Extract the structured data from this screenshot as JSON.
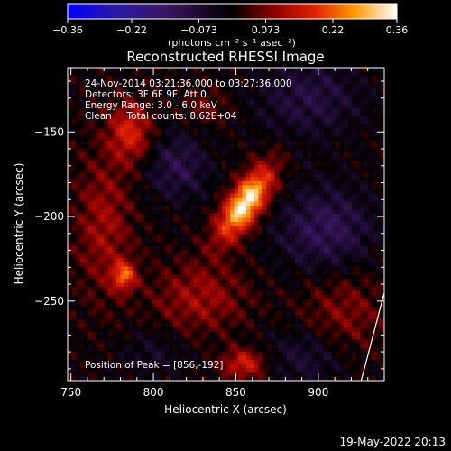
{
  "chart_data": {
    "type": "heatmap",
    "title": "Reconstructed RHESSI Image",
    "xlabel": "Heliocentric X (arcsec)",
    "ylabel": "Heliocentric Y (arcsec)",
    "xlim": [
      748,
      940
    ],
    "ylim": [
      -297,
      -112
    ],
    "x_ticks": [
      750,
      800,
      850,
      900
    ],
    "y_ticks": [
      -150,
      -200,
      -250
    ],
    "x_tick_labels": [
      "750",
      "800",
      "850",
      "900"
    ],
    "y_tick_labels": [
      "−150",
      "−200",
      "−250"
    ],
    "colorbar": {
      "range": [
        -0.36,
        0.36
      ],
      "ticks": [
        -0.36,
        -0.22,
        -0.073,
        0.073,
        0.22,
        0.36
      ],
      "tick_labels": [
        "−0.36",
        "−0.22",
        "−0.073",
        "0.073",
        "0.22",
        "0.36"
      ],
      "unit_label": "(photons cm⁻² s⁻¹ asec⁻²)",
      "colormap": "blue-black-red-yellow-white"
    },
    "annotations": [
      "24-Nov-2014 03:21:36.000 to 03:27:36.000",
      "Detectors: 3F 6F 9F, Att 0",
      "Energy Range: 3.0 - 6.0 keV",
      "Clean     Total counts: 8.62E+04"
    ],
    "peak_label": "Position of Peak = [856,-192]",
    "peak": {
      "x": 856,
      "y": -192,
      "value": 0.36
    },
    "sources": [
      {
        "x": 856,
        "y": -192,
        "peak": 0.36,
        "sx": 7,
        "sy": 17,
        "angle": 35
      },
      {
        "x": 786,
        "y": -150,
        "peak": 0.16,
        "sx": 9,
        "sy": 12,
        "angle": 0
      },
      {
        "x": 782,
        "y": -235,
        "peak": 0.2,
        "sx": 5,
        "sy": 6,
        "angle": 0
      },
      {
        "x": 855,
        "y": -287,
        "peak": 0.16,
        "sx": 9,
        "sy": 6,
        "angle": 0
      },
      {
        "x": 770,
        "y": -205,
        "peak": 0.1,
        "sx": 12,
        "sy": 30,
        "angle": 0
      },
      {
        "x": 828,
        "y": -248,
        "peak": 0.1,
        "sx": 20,
        "sy": 15,
        "angle": 0
      },
      {
        "x": 915,
        "y": -258,
        "peak": 0.08,
        "sx": 18,
        "sy": 20,
        "angle": 0
      },
      {
        "x": 832,
        "y": -135,
        "peak": 0.06,
        "sx": 10,
        "sy": 8,
        "angle": 0
      },
      {
        "x": 815,
        "y": -170,
        "peak": -0.1,
        "sx": 13,
        "sy": 14,
        "angle": 0
      },
      {
        "x": 895,
        "y": -130,
        "peak": -0.09,
        "sx": 22,
        "sy": 16,
        "angle": 0
      },
      {
        "x": 905,
        "y": -208,
        "peak": -0.12,
        "sx": 20,
        "sy": 18,
        "angle": 0
      },
      {
        "x": 895,
        "y": -282,
        "peak": -0.08,
        "sx": 18,
        "sy": 12,
        "angle": 0
      },
      {
        "x": 800,
        "y": -280,
        "peak": -0.05,
        "sx": 14,
        "sy": 10,
        "angle": 0
      }
    ],
    "limb_line": {
      "x": [
        926,
        940
      ],
      "y": [
        -297,
        -245
      ]
    },
    "footer_date": "19-May-2022 20:13"
  }
}
